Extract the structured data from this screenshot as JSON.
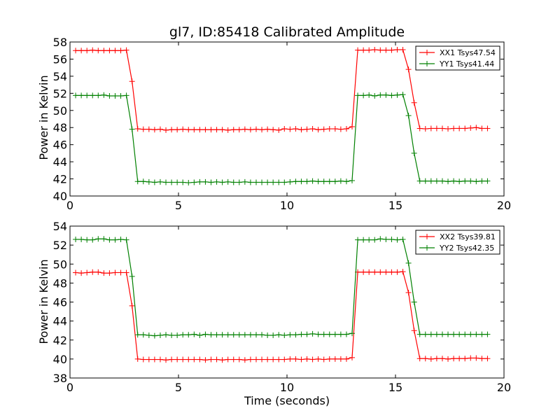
{
  "chart_data": [
    {
      "type": "line",
      "title": "gl7, ID:85418 Calibrated Amplitude",
      "xlabel": "",
      "ylabel": "Power in Kelvin",
      "xlim": [
        0,
        20
      ],
      "ylim": [
        40,
        58
      ],
      "xticks": [
        0,
        5,
        10,
        15,
        20
      ],
      "yticks": [
        40,
        42,
        44,
        46,
        48,
        50,
        52,
        54,
        56,
        58
      ],
      "legend_position": "top-right",
      "series": [
        {
          "name": "XX1 Tsys47.54",
          "color": "#ff0000",
          "marker": "plus",
          "x": [
            0.26,
            0.52,
            0.78,
            1.04,
            1.3,
            1.56,
            1.82,
            2.08,
            2.34,
            2.6,
            2.86,
            3.12,
            3.38,
            3.64,
            3.9,
            4.16,
            4.42,
            4.68,
            4.94,
            5.2,
            5.46,
            5.72,
            5.98,
            6.24,
            6.5,
            6.76,
            7.02,
            7.28,
            7.54,
            7.8,
            8.06,
            8.32,
            8.58,
            8.84,
            9.1,
            9.36,
            9.62,
            9.88,
            10.14,
            10.4,
            10.66,
            10.92,
            11.18,
            11.44,
            11.7,
            11.96,
            12.22,
            12.48,
            12.74,
            13.0,
            13.26,
            13.52,
            13.78,
            14.04,
            14.3,
            14.56,
            14.82,
            15.08,
            15.34,
            15.6,
            15.86,
            16.12,
            16.38,
            16.64,
            16.9,
            17.16,
            17.42,
            17.68,
            17.94,
            18.2,
            18.46,
            18.72,
            18.98,
            19.24
          ],
          "y": [
            57.0,
            57.0,
            57.0,
            57.05,
            57.0,
            57.0,
            57.0,
            57.0,
            57.0,
            57.05,
            53.4,
            47.85,
            47.8,
            47.8,
            47.75,
            47.8,
            47.7,
            47.75,
            47.75,
            47.8,
            47.75,
            47.75,
            47.75,
            47.75,
            47.75,
            47.75,
            47.75,
            47.7,
            47.75,
            47.75,
            47.8,
            47.75,
            47.8,
            47.75,
            47.8,
            47.75,
            47.7,
            47.85,
            47.8,
            47.85,
            47.75,
            47.8,
            47.85,
            47.75,
            47.8,
            47.85,
            47.85,
            47.8,
            47.85,
            48.1,
            57.05,
            57.05,
            57.05,
            57.1,
            57.05,
            57.05,
            57.05,
            57.1,
            57.1,
            54.8,
            50.9,
            47.9,
            47.85,
            47.9,
            47.9,
            47.9,
            47.85,
            47.9,
            47.9,
            47.9,
            47.95,
            48.0,
            47.9,
            47.9
          ]
        },
        {
          "name": "YY1 Tsys41.44",
          "color": "#008000",
          "marker": "plus",
          "x": [
            0.26,
            0.52,
            0.78,
            1.04,
            1.3,
            1.56,
            1.82,
            2.08,
            2.34,
            2.6,
            2.86,
            3.12,
            3.38,
            3.64,
            3.9,
            4.16,
            4.42,
            4.68,
            4.94,
            5.2,
            5.46,
            5.72,
            5.98,
            6.24,
            6.5,
            6.76,
            7.02,
            7.28,
            7.54,
            7.8,
            8.06,
            8.32,
            8.58,
            8.84,
            9.1,
            9.36,
            9.62,
            9.88,
            10.14,
            10.4,
            10.66,
            10.92,
            11.18,
            11.44,
            11.7,
            11.96,
            12.22,
            12.48,
            12.74,
            13.0,
            13.26,
            13.52,
            13.78,
            14.04,
            14.3,
            14.56,
            14.82,
            15.08,
            15.34,
            15.6,
            15.86,
            16.12,
            16.38,
            16.64,
            16.9,
            17.16,
            17.42,
            17.68,
            17.94,
            18.2,
            18.46,
            18.72,
            18.98,
            19.24
          ],
          "y": [
            51.75,
            51.75,
            51.75,
            51.75,
            51.75,
            51.8,
            51.7,
            51.7,
            51.7,
            51.75,
            47.8,
            41.7,
            41.7,
            41.65,
            41.6,
            41.65,
            41.6,
            41.6,
            41.6,
            41.6,
            41.55,
            41.6,
            41.65,
            41.65,
            41.6,
            41.65,
            41.6,
            41.65,
            41.6,
            41.6,
            41.65,
            41.6,
            41.6,
            41.6,
            41.6,
            41.6,
            41.6,
            41.6,
            41.65,
            41.7,
            41.7,
            41.7,
            41.75,
            41.7,
            41.7,
            41.7,
            41.7,
            41.75,
            41.7,
            41.8,
            51.75,
            51.75,
            51.8,
            51.7,
            51.8,
            51.8,
            51.75,
            51.8,
            51.85,
            49.4,
            45.0,
            41.75,
            41.75,
            41.75,
            41.75,
            41.75,
            41.7,
            41.75,
            41.7,
            41.75,
            41.75,
            41.7,
            41.75,
            41.75
          ]
        }
      ]
    },
    {
      "type": "line",
      "title": "",
      "xlabel": "Time (seconds)",
      "ylabel": "Power in Kelvin",
      "xlim": [
        0,
        20
      ],
      "ylim": [
        38,
        54
      ],
      "xticks": [
        0,
        5,
        10,
        15,
        20
      ],
      "yticks": [
        38,
        40,
        42,
        44,
        46,
        48,
        50,
        52,
        54
      ],
      "legend_position": "top-right",
      "series": [
        {
          "name": "XX2 Tsys39.81",
          "color": "#ff0000",
          "marker": "plus",
          "x": [
            0.26,
            0.52,
            0.78,
            1.04,
            1.3,
            1.56,
            1.82,
            2.08,
            2.34,
            2.6,
            2.86,
            3.12,
            3.38,
            3.64,
            3.9,
            4.16,
            4.42,
            4.68,
            4.94,
            5.2,
            5.46,
            5.72,
            5.98,
            6.24,
            6.5,
            6.76,
            7.02,
            7.28,
            7.54,
            7.8,
            8.06,
            8.32,
            8.58,
            8.84,
            9.1,
            9.36,
            9.62,
            9.88,
            10.14,
            10.4,
            10.66,
            10.92,
            11.18,
            11.44,
            11.7,
            11.96,
            12.22,
            12.48,
            12.74,
            13.0,
            13.26,
            13.52,
            13.78,
            14.04,
            14.3,
            14.56,
            14.82,
            15.08,
            15.34,
            15.6,
            15.86,
            16.12,
            16.38,
            16.64,
            16.9,
            17.16,
            17.42,
            17.68,
            17.94,
            18.2,
            18.46,
            18.72,
            18.98,
            19.24
          ],
          "y": [
            49.1,
            49.05,
            49.1,
            49.15,
            49.15,
            49.05,
            49.05,
            49.1,
            49.1,
            49.1,
            45.6,
            40.0,
            39.95,
            39.95,
            39.95,
            39.95,
            39.9,
            39.95,
            39.95,
            39.95,
            39.95,
            39.95,
            39.95,
            39.9,
            39.95,
            39.95,
            39.9,
            39.95,
            39.95,
            39.95,
            39.9,
            39.95,
            39.95,
            39.95,
            39.95,
            39.95,
            39.95,
            39.95,
            40.0,
            40.0,
            39.95,
            40.0,
            39.95,
            40.0,
            39.95,
            40.0,
            40.0,
            40.0,
            40.0,
            40.15,
            49.15,
            49.15,
            49.15,
            49.15,
            49.15,
            49.15,
            49.15,
            49.15,
            49.2,
            47.0,
            43.0,
            40.05,
            40.05,
            40.0,
            40.05,
            40.05,
            40.0,
            40.05,
            40.05,
            40.05,
            40.1,
            40.1,
            40.05,
            40.05
          ]
        },
        {
          "name": "YY2 Tsys42.35",
          "color": "#008000",
          "marker": "plus",
          "x": [
            0.26,
            0.52,
            0.78,
            1.04,
            1.3,
            1.56,
            1.82,
            2.08,
            2.34,
            2.6,
            2.86,
            3.12,
            3.38,
            3.64,
            3.9,
            4.16,
            4.42,
            4.68,
            4.94,
            5.2,
            5.46,
            5.72,
            5.98,
            6.24,
            6.5,
            6.76,
            7.02,
            7.28,
            7.54,
            7.8,
            8.06,
            8.32,
            8.58,
            8.84,
            9.1,
            9.36,
            9.62,
            9.88,
            10.14,
            10.4,
            10.66,
            10.92,
            11.18,
            11.44,
            11.7,
            11.96,
            12.22,
            12.48,
            12.74,
            13.0,
            13.26,
            13.52,
            13.78,
            14.04,
            14.3,
            14.56,
            14.82,
            15.08,
            15.34,
            15.6,
            15.86,
            16.12,
            16.38,
            16.64,
            16.9,
            17.16,
            17.42,
            17.68,
            17.94,
            18.2,
            18.46,
            18.72,
            18.98,
            19.24
          ],
          "y": [
            52.6,
            52.6,
            52.55,
            52.55,
            52.65,
            52.65,
            52.55,
            52.55,
            52.6,
            52.55,
            48.7,
            42.55,
            42.55,
            42.5,
            42.45,
            42.5,
            42.55,
            42.5,
            42.5,
            42.55,
            42.55,
            42.6,
            42.5,
            42.6,
            42.55,
            42.55,
            42.55,
            42.55,
            42.55,
            42.55,
            42.55,
            42.55,
            42.55,
            42.55,
            42.5,
            42.5,
            42.55,
            42.5,
            42.55,
            42.55,
            42.6,
            42.6,
            42.65,
            42.6,
            42.6,
            42.6,
            42.6,
            42.6,
            42.6,
            42.7,
            52.55,
            52.55,
            52.55,
            52.55,
            52.65,
            52.6,
            52.6,
            52.55,
            52.6,
            50.1,
            46.0,
            42.6,
            42.6,
            42.6,
            42.6,
            42.6,
            42.6,
            42.6,
            42.6,
            42.6,
            42.6,
            42.6,
            42.6,
            42.6
          ]
        }
      ]
    }
  ]
}
